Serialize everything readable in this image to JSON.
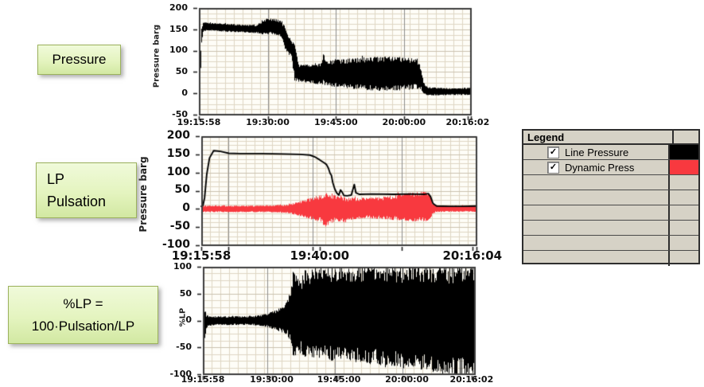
{
  "annotations": [
    {
      "id": "pressure-label",
      "lines": [
        "Pressure"
      ],
      "align": "center",
      "font": 17
    },
    {
      "id": "lp-pulsation-label",
      "lines": [
        "LP",
        "Pulsation"
      ],
      "align": "left",
      "font": 18
    },
    {
      "id": "percent-lp-label",
      "lines": [
        "%LP =",
        "100·Pulsation/LP"
      ],
      "align": "center",
      "font": 17
    }
  ],
  "legend": {
    "title": "Legend",
    "rows": [
      {
        "label": "Line Pressure",
        "checked": true,
        "check_glyph": "✓",
        "color": "#000000"
      },
      {
        "label": "Dynamic Press",
        "checked": true,
        "check_glyph": "✓",
        "color": "#f8393f"
      }
    ],
    "empty_rows": 6
  },
  "chart_data": [
    {
      "id": "pressure-chart",
      "type": "line",
      "title": "",
      "ylabel": "Pressure barg",
      "ylim": [
        -50,
        200
      ],
      "yticks": [
        200,
        150,
        100,
        50,
        0,
        -50
      ],
      "xticks": [
        {
          "label": "19:15:58",
          "pos": 0.0
        },
        {
          "label": "19:30:00",
          "pos": 0.253
        },
        {
          "label": "19:45:00",
          "pos": 0.504
        },
        {
          "label": "20:00:00",
          "pos": 0.754
        },
        {
          "label": "20:16:02",
          "pos": 0.988
        }
      ],
      "major_vlines": [
        0.253,
        0.504,
        0.754
      ],
      "grid": true,
      "series": [
        {
          "name": "Line Pressure",
          "type": "band",
          "color": "#000000",
          "points": [
            [
              0.0,
              5,
              22
            ],
            [
              0.004,
              5,
              70
            ],
            [
              0.008,
              110,
              150
            ],
            [
              0.015,
              146,
              166
            ],
            [
              0.05,
              147,
              165
            ],
            [
              0.1,
              144,
              163
            ],
            [
              0.16,
              143,
              161
            ],
            [
              0.21,
              141,
              160
            ],
            [
              0.225,
              138,
              167
            ],
            [
              0.25,
              139,
              176
            ],
            [
              0.285,
              137,
              174
            ],
            [
              0.3,
              133,
              170
            ],
            [
              0.315,
              105,
              158
            ],
            [
              0.325,
              92,
              140
            ],
            [
              0.34,
              84,
              122
            ],
            [
              0.35,
              30,
              118
            ],
            [
              0.365,
              27,
              68
            ],
            [
              0.41,
              24,
              67
            ],
            [
              0.44,
              21,
              70
            ],
            [
              0.452,
              20,
              74
            ],
            [
              0.458,
              20,
              106
            ],
            [
              0.464,
              19,
              76
            ],
            [
              0.5,
              15,
              78
            ],
            [
              0.56,
              11,
              82
            ],
            [
              0.62,
              7,
              85
            ],
            [
              0.68,
              6,
              86
            ],
            [
              0.74,
              7,
              85
            ],
            [
              0.78,
              9,
              83
            ],
            [
              0.8,
              11,
              79
            ],
            [
              0.815,
              9,
              62
            ],
            [
              0.824,
              -1,
              28
            ],
            [
              0.835,
              -4,
              15
            ],
            [
              0.88,
              -5,
              13
            ],
            [
              0.94,
              -4,
              12
            ],
            [
              1.0,
              -4,
              13
            ]
          ]
        }
      ]
    },
    {
      "id": "lp-pulsation-chart",
      "type": "line",
      "title": "",
      "ylabel": "Pressure barg",
      "ylim": [
        -100,
        200
      ],
      "yticks": [
        200,
        150,
        100,
        50,
        0,
        -50,
        -100
      ],
      "xticks": [
        {
          "label": "19:15:58",
          "pos": 0.0
        },
        {
          "label": "19:40:00",
          "pos": 0.43
        },
        {
          "label": "20:16:04",
          "pos": 0.985
        }
      ],
      "major_vlines": [
        0.097,
        0.405,
        0.729
      ],
      "grid": true,
      "series": [
        {
          "name": "Dynamic Pressure",
          "type": "band",
          "color": "#f8393f",
          "points": [
            [
              0,
              -9,
              9
            ],
            [
              0.22,
              -9,
              9
            ],
            [
              0.27,
              -10,
              10
            ],
            [
              0.31,
              -12,
              12
            ],
            [
              0.34,
              -16,
              17
            ],
            [
              0.37,
              -22,
              24
            ],
            [
              0.39,
              -27,
              29
            ],
            [
              0.41,
              -32,
              34
            ],
            [
              0.43,
              -34,
              38
            ],
            [
              0.45,
              -52,
              44
            ],
            [
              0.465,
              -40,
              42
            ],
            [
              0.48,
              -36,
              38
            ],
            [
              0.5,
              -34,
              34
            ],
            [
              0.52,
              -38,
              32
            ],
            [
              0.54,
              -30,
              31
            ],
            [
              0.57,
              -27,
              30
            ],
            [
              0.61,
              -26,
              31
            ],
            [
              0.65,
              -28,
              33
            ],
            [
              0.69,
              -30,
              37
            ],
            [
              0.73,
              -32,
              42
            ],
            [
              0.77,
              -34,
              46
            ],
            [
              0.8,
              -35,
              48
            ],
            [
              0.825,
              -33,
              44
            ],
            [
              0.838,
              -18,
              18
            ],
            [
              0.85,
              -9,
              10
            ],
            [
              0.92,
              -8,
              9
            ],
            [
              1.0,
              -8,
              9
            ]
          ]
        },
        {
          "name": "Line Pressure",
          "type": "line",
          "color": "#000000",
          "points": [
            [
              0,
              7
            ],
            [
              0.006,
              9
            ],
            [
              0.012,
              30
            ],
            [
              0.02,
              95
            ],
            [
              0.03,
              140
            ],
            [
              0.045,
              160
            ],
            [
              0.07,
              158
            ],
            [
              0.1,
              153
            ],
            [
              0.14,
              152
            ],
            [
              0.22,
              152
            ],
            [
              0.3,
              151
            ],
            [
              0.36,
              150
            ],
            [
              0.395,
              148
            ],
            [
              0.415,
              142
            ],
            [
              0.43,
              135
            ],
            [
              0.44,
              130
            ],
            [
              0.448,
              126
            ],
            [
              0.455,
              122
            ],
            [
              0.462,
              112
            ],
            [
              0.468,
              98
            ],
            [
              0.473,
              92
            ],
            [
              0.478,
              72
            ],
            [
              0.485,
              55
            ],
            [
              0.492,
              44
            ],
            [
              0.5,
              38
            ],
            [
              0.506,
              52
            ],
            [
              0.512,
              46
            ],
            [
              0.518,
              37
            ],
            [
              0.53,
              36
            ],
            [
              0.545,
              38
            ],
            [
              0.556,
              67
            ],
            [
              0.562,
              44
            ],
            [
              0.575,
              40
            ],
            [
              0.62,
              41
            ],
            [
              0.7,
              40
            ],
            [
              0.76,
              41
            ],
            [
              0.81,
              40
            ],
            [
              0.825,
              42
            ],
            [
              0.833,
              34
            ],
            [
              0.842,
              15
            ],
            [
              0.855,
              8
            ],
            [
              0.9,
              7
            ],
            [
              0.95,
              7
            ],
            [
              1.0,
              8
            ]
          ]
        }
      ]
    },
    {
      "id": "percent-lp-chart",
      "type": "line",
      "title": "",
      "ylabel": "%LP",
      "ylim": [
        -100,
        100
      ],
      "yticks": [
        100,
        50,
        0,
        -50,
        -100
      ],
      "xticks": [
        {
          "label": "19:15:58",
          "pos": 0.0
        },
        {
          "label": "19:30:00",
          "pos": 0.253
        },
        {
          "label": "19:45:00",
          "pos": 0.5
        },
        {
          "label": "20:00:00",
          "pos": 0.75
        },
        {
          "label": "20:16:02",
          "pos": 0.988
        }
      ],
      "major_vlines": [
        0.238,
        0.485,
        0.733
      ],
      "grid": true,
      "series": [
        {
          "name": "%LP",
          "type": "band",
          "color": "#000000",
          "points": [
            [
              0,
              -28,
              14
            ],
            [
              0.006,
              -36,
              22
            ],
            [
              0.012,
              -14,
              10
            ],
            [
              0.03,
              -9,
              8
            ],
            [
              0.17,
              -8,
              8
            ],
            [
              0.21,
              -10,
              10
            ],
            [
              0.24,
              -13,
              14
            ],
            [
              0.27,
              -18,
              20
            ],
            [
              0.295,
              -24,
              27
            ],
            [
              0.31,
              -28,
              38
            ],
            [
              0.322,
              -40,
              60
            ],
            [
              0.33,
              -70,
              93
            ],
            [
              0.345,
              -66,
              84
            ],
            [
              0.36,
              -60,
              78
            ],
            [
              0.375,
              -70,
              96
            ],
            [
              0.39,
              -64,
              86
            ],
            [
              0.405,
              -70,
              99
            ],
            [
              0.42,
              -66,
              90
            ],
            [
              0.435,
              -74,
              100
            ],
            [
              0.45,
              -68,
              94
            ],
            [
              0.47,
              -76,
              100
            ],
            [
              0.49,
              -70,
              96
            ],
            [
              0.51,
              -78,
              100
            ],
            [
              0.53,
              -74,
              100
            ],
            [
              0.55,
              -80,
              100
            ],
            [
              0.58,
              -77,
              100
            ],
            [
              0.61,
              -84,
              100
            ],
            [
              0.64,
              -80,
              100
            ],
            [
              0.67,
              -88,
              100
            ],
            [
              0.7,
              -84,
              100
            ],
            [
              0.73,
              -90,
              100
            ],
            [
              0.76,
              -86,
              100
            ],
            [
              0.79,
              -93,
              100
            ],
            [
              0.82,
              -90,
              100
            ],
            [
              0.85,
              -97,
              100
            ],
            [
              0.87,
              -100,
              100
            ],
            [
              1.0,
              -100,
              100
            ]
          ]
        }
      ]
    }
  ],
  "colors": {
    "plot_bg": "#fefdf7",
    "grid_minor": "#ded6c4",
    "grid_major_h": "#cbc2af",
    "grid_major_v": "#8d8d8d",
    "frame": "#3b3b3b",
    "trace_black": "#000000",
    "trace_red": "#f8393f"
  }
}
